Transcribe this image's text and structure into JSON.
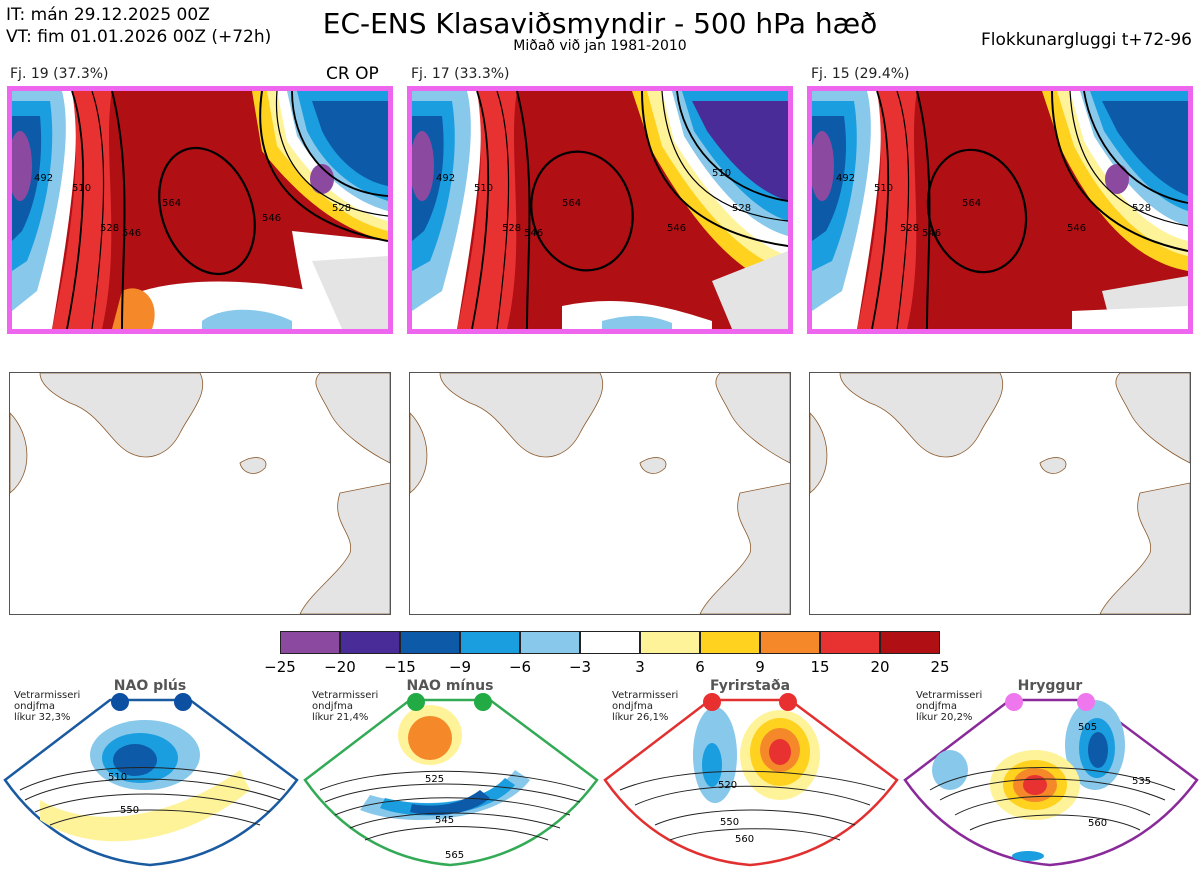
{
  "header": {
    "it_line": "IT: mán 29.12.2025 00Z",
    "vt_line": "VT: fim 01.01.2026 00Z  (+72h)",
    "title": "EC-ENS Klasaviðsmyndir - 500 hPa hæð",
    "subtitle": "Miðað við jan 1981-2010",
    "window": "Flokkunargluggi t+72-96"
  },
  "clusters": [
    {
      "label": "Fj. 19 (37.3%)",
      "tag": "CR OP",
      "contours": [
        "492",
        "510",
        "528",
        "546",
        "564",
        "546",
        "528",
        "510",
        "528"
      ]
    },
    {
      "label": "Fj. 17 (33.3%)",
      "tag": "",
      "contours": [
        "492",
        "510",
        "528",
        "546",
        "564",
        "546",
        "528",
        "510",
        "528"
      ]
    },
    {
      "label": "Fj. 15 (29.4%)",
      "tag": "",
      "contours": [
        "492",
        "510",
        "528",
        "546",
        "564",
        "546",
        "528",
        "510",
        "528"
      ]
    }
  ],
  "colors": {
    "frame": "#ee66ee",
    "land": "#e4e4e4",
    "coast": "#8b5a2b"
  },
  "colorbar": {
    "ticks": [
      "−25",
      "−20",
      "−15",
      "−9",
      "−6",
      "−3",
      "3",
      "6",
      "9",
      "15",
      "20",
      "25"
    ],
    "colors": [
      "#8b4aa0",
      "#4a2c98",
      "#0d5aa8",
      "#1a9ee0",
      "#88c8ea",
      "#ffffff",
      "#fff39a",
      "#ffd21f",
      "#f5892a",
      "#e83232",
      "#b00f14"
    ]
  },
  "regimes": [
    {
      "name": "NAO plús",
      "note": [
        "Vetrarmisseri",
        "ondjfma",
        "líkur 32,3%"
      ],
      "frame": "#1a5aa0",
      "dot": "#0d4fa0",
      "labels": [
        "510",
        "550"
      ]
    },
    {
      "name": "NAO mínus",
      "note": [
        "Vetrarmisseri",
        "ondjfma",
        "líkur 21,4%"
      ],
      "frame": "#33aa55",
      "dot": "#22aa44",
      "labels": [
        "525",
        "545",
        "565"
      ]
    },
    {
      "name": "Fyrirstaða",
      "note": [
        "Vetrarmisseri",
        "ondjfma",
        "líkur 26,1%"
      ],
      "frame": "#e23030",
      "dot": "#e83030",
      "labels": [
        "520",
        "550",
        "560"
      ]
    },
    {
      "name": "Hryggur",
      "note": [
        "Vetrarmisseri",
        "ondjfma",
        "líkur 20,2%"
      ],
      "frame": "#8a2a9a",
      "dot": "#ee77ee",
      "labels": [
        "505",
        "535",
        "560"
      ]
    }
  ]
}
